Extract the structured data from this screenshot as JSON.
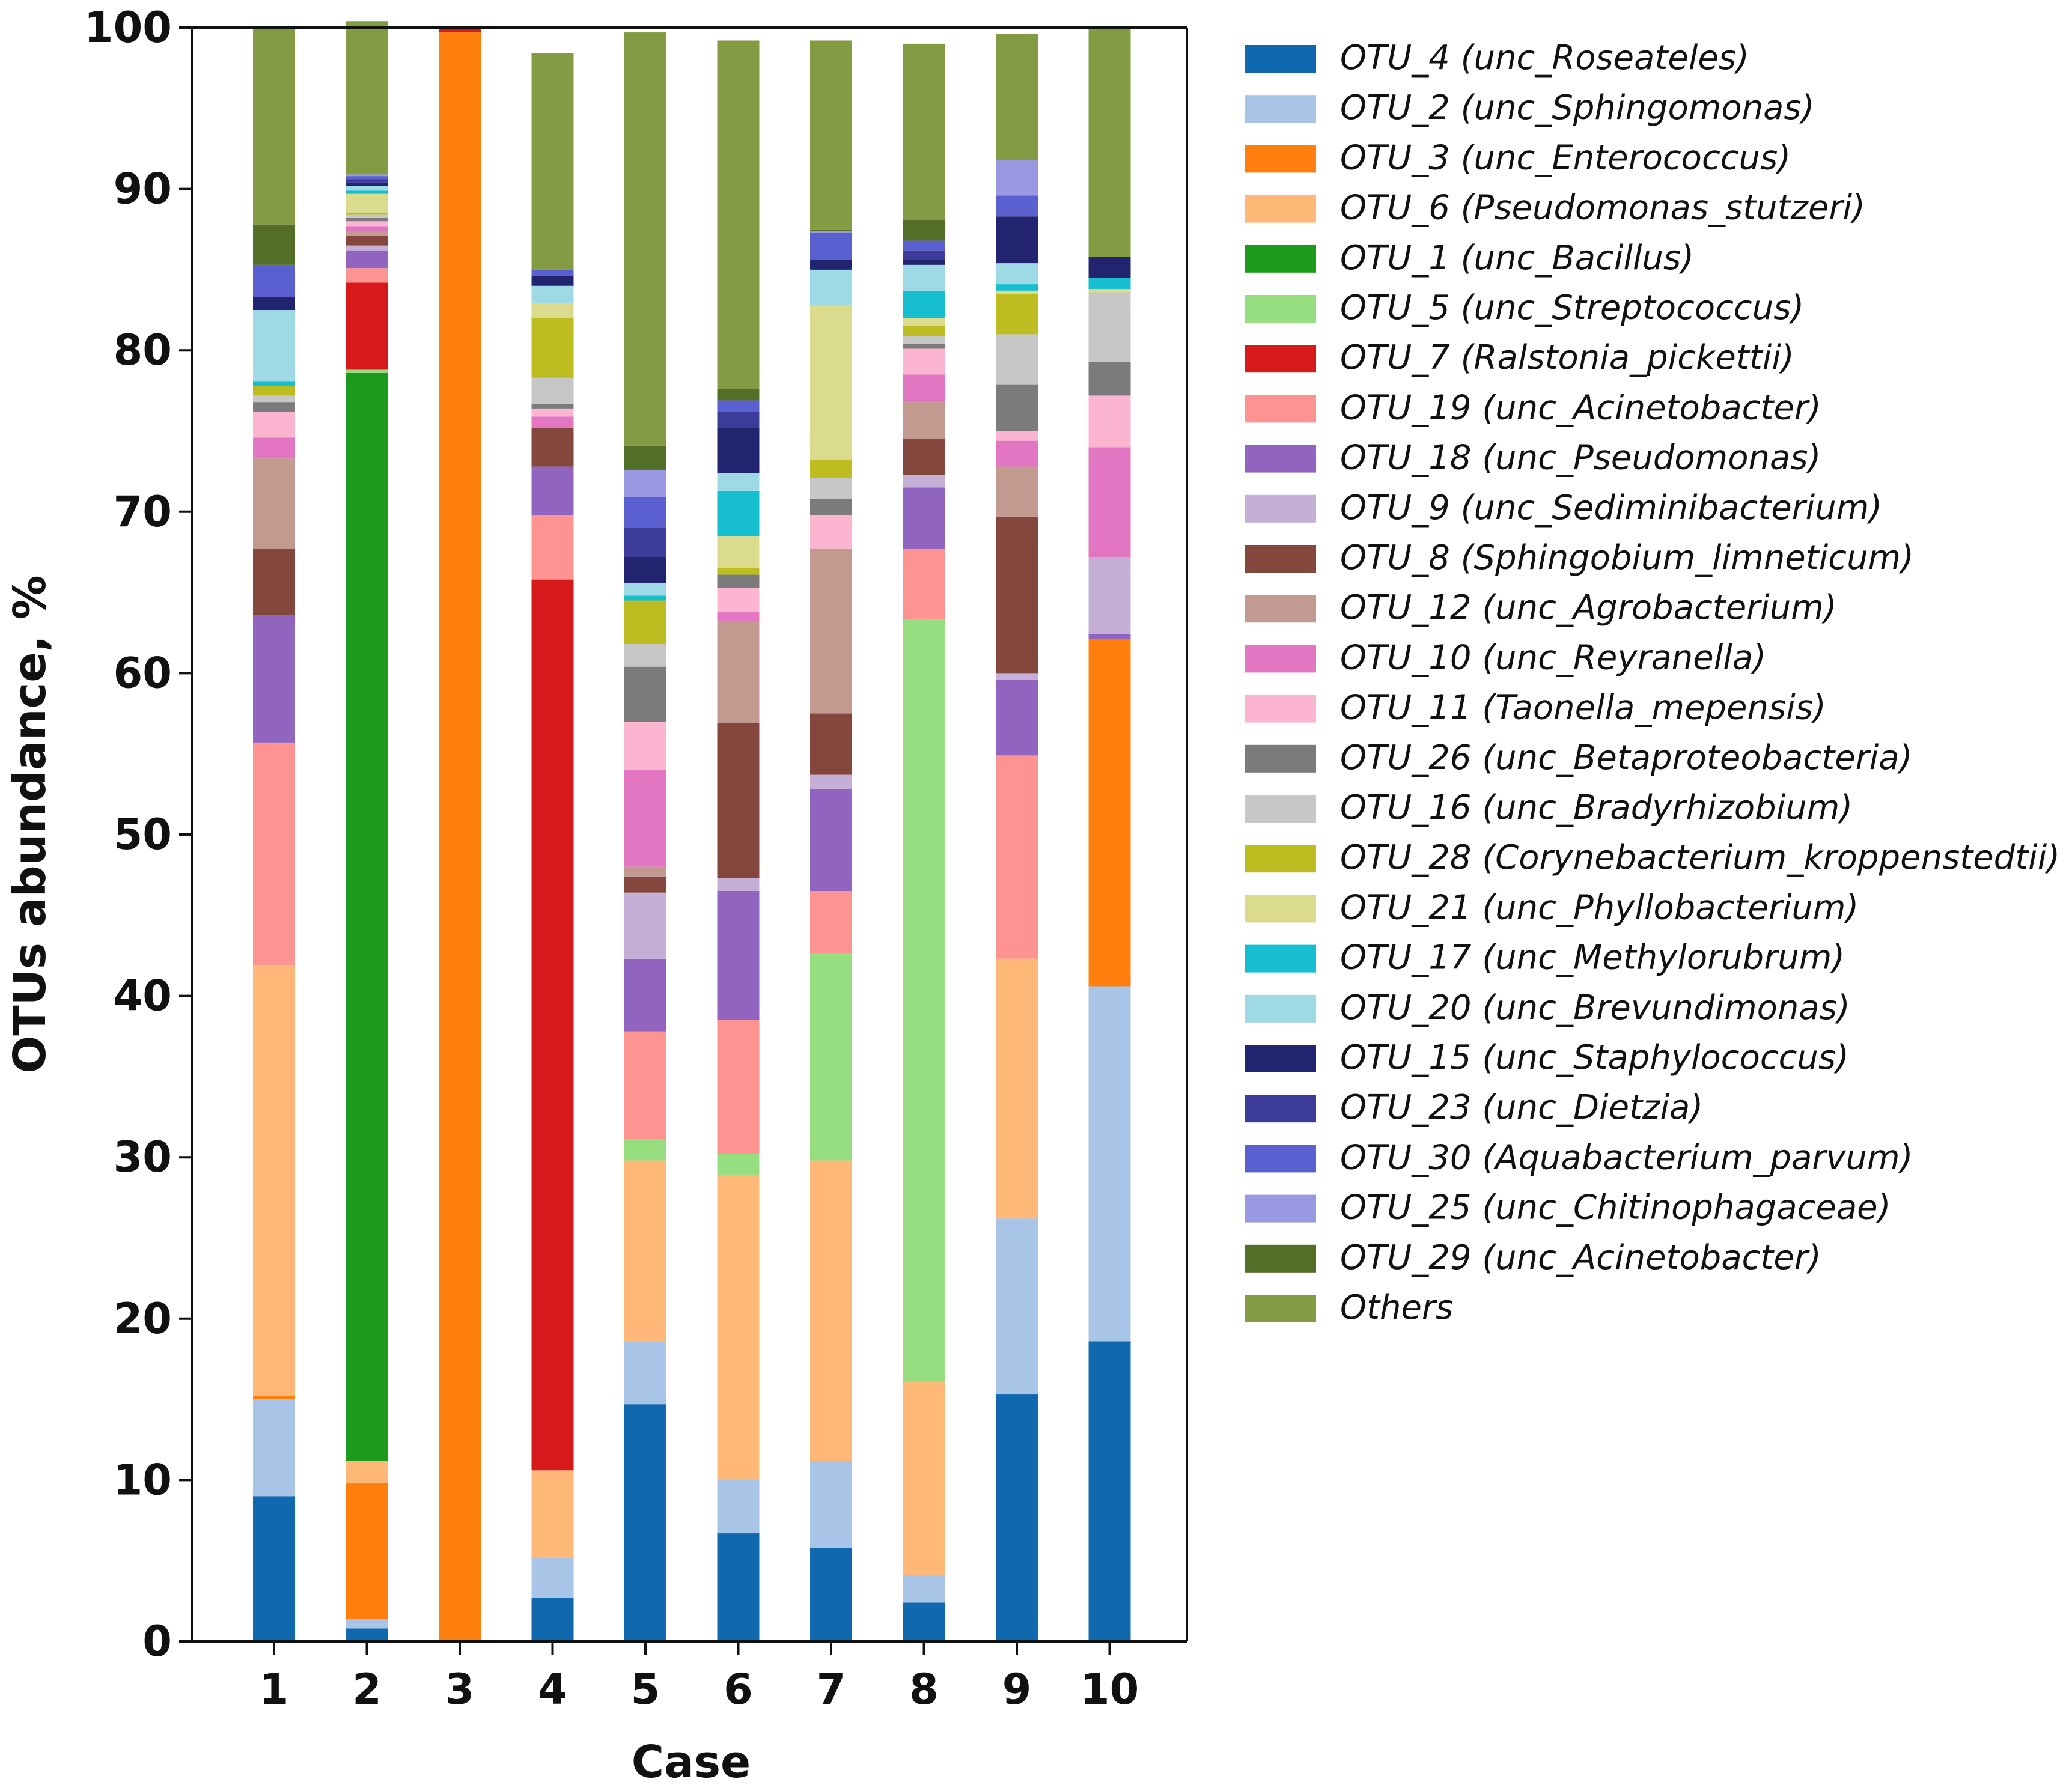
{
  "chart_data": {
    "type": "bar",
    "stacked": true,
    "xlabel": "Case",
    "ylabel": "OTUs abundance, %",
    "ylim": [
      0,
      100
    ],
    "yticks": [
      0,
      10,
      20,
      30,
      40,
      50,
      60,
      70,
      80,
      90,
      100
    ],
    "categories": [
      "1",
      "2",
      "3",
      "4",
      "5",
      "6",
      "7",
      "8",
      "9",
      "10"
    ],
    "legend_position": "right",
    "series": [
      {
        "name": "OTU_4 (unc_Roseateles)",
        "color": "#1068ae",
        "values": [
          9.0,
          0.8,
          0,
          2.7,
          14.7,
          6.7,
          5.8,
          2.4,
          15.3,
          18.6
        ]
      },
      {
        "name": "OTU_2 (unc_Sphingomonas)",
        "color": "#a8c4e6",
        "values": [
          6.0,
          0.6,
          0,
          2.5,
          3.9,
          3.3,
          5.4,
          1.7,
          10.9,
          22.0
        ]
      },
      {
        "name": "OTU_3 (unc_Enterococcus)",
        "color": "#ff7f0e",
        "values": [
          0.2,
          8.4,
          99.7,
          0,
          0,
          0,
          0,
          0,
          0,
          21.5
        ]
      },
      {
        "name": "OTU_6 (Pseudomonas_stutzeri)",
        "color": "#ffb878",
        "values": [
          26.7,
          1.4,
          0,
          5.4,
          11.2,
          18.9,
          18.6,
          12.0,
          16.1,
          0
        ]
      },
      {
        "name": "OTU_1 (unc_Bacillus)",
        "color": "#1c9a1c",
        "values": [
          0,
          67.4,
          0,
          0,
          0,
          0,
          0,
          0,
          0,
          0
        ]
      },
      {
        "name": "OTU_5 (unc_Streptococcus)",
        "color": "#96de80",
        "values": [
          0,
          0.2,
          0,
          0,
          1.3,
          1.3,
          12.8,
          47.2,
          0,
          0
        ]
      },
      {
        "name": "OTU_7 (Ralstonia_pickettii)",
        "color": "#d6191b",
        "values": [
          0,
          5.4,
          0.2,
          55.2,
          0,
          0,
          0,
          0,
          0,
          0
        ]
      },
      {
        "name": "OTU_19 (unc_Acinetobacter)",
        "color": "#fe9491",
        "values": [
          13.8,
          0.9,
          0,
          4.0,
          6.7,
          8.3,
          3.9,
          4.4,
          12.6,
          0
        ]
      },
      {
        "name": "OTU_18 (unc_Pseudomonas)",
        "color": "#9165bf",
        "values": [
          7.9,
          1.1,
          0,
          3.0,
          4.5,
          8.0,
          6.3,
          3.8,
          4.7,
          0.3
        ]
      },
      {
        "name": "OTU_9 (unc_Sediminibacterium)",
        "color": "#c5afd6",
        "values": [
          0,
          0.3,
          0,
          0,
          4.1,
          0.8,
          0.9,
          0.8,
          0.4,
          4.8
        ]
      },
      {
        "name": "OTU_8 (Sphingobium_limneticum)",
        "color": "#84473e",
        "values": [
          4.1,
          0.6,
          0,
          2.4,
          1.0,
          9.6,
          3.8,
          2.2,
          9.7,
          0
        ]
      },
      {
        "name": "OTU_12 (unc_Agrobacterium)",
        "color": "#c39a90",
        "values": [
          5.6,
          0.3,
          0,
          0,
          0.6,
          6.3,
          10.2,
          2.3,
          3.1,
          0
        ]
      },
      {
        "name": "OTU_10 (unc_Reyranella)",
        "color": "#e376c2",
        "values": [
          1.3,
          0.3,
          0,
          0.7,
          6.0,
          0.6,
          0,
          1.7,
          1.6,
          6.8
        ]
      },
      {
        "name": "OTU_11 (Taonella_mepensis)",
        "color": "#fcb5d0",
        "values": [
          1.6,
          0.3,
          0,
          0.5,
          3.0,
          1.5,
          2.1,
          1.6,
          0.6,
          3.2
        ]
      },
      {
        "name": "OTU_26 (unc_Betaproteobacteria)",
        "color": "#7b7b7b",
        "values": [
          0.6,
          0.2,
          0,
          0.3,
          3.4,
          0.8,
          1.0,
          0.3,
          2.9,
          2.1
        ]
      },
      {
        "name": "OTU_16 (unc_Bradyrhizobium)",
        "color": "#c7c7c7",
        "values": [
          0.4,
          0.2,
          0,
          1.6,
          1.4,
          0,
          1.3,
          0.5,
          3.1,
          4.3
        ]
      },
      {
        "name": "OTU_28 (Corynebacterium_kroppenstedtii)",
        "color": "#bdbd22",
        "values": [
          0.6,
          0.1,
          0,
          3.7,
          2.7,
          0.4,
          1.1,
          0.6,
          2.5,
          0
        ]
      },
      {
        "name": "OTU_21 (unc_Phyllobacterium)",
        "color": "#dbdb8d",
        "values": [
          0,
          1.2,
          0,
          0.9,
          0,
          2.0,
          9.6,
          0.5,
          0.2,
          0.2
        ]
      },
      {
        "name": "OTU_17 (unc_Methylorubrum)",
        "color": "#17becf",
        "values": [
          0.3,
          0.2,
          0,
          0,
          0.3,
          2.8,
          0,
          1.7,
          0.4,
          0.7
        ]
      },
      {
        "name": "OTU_20 (unc_Brevundimonas)",
        "color": "#9edae5",
        "values": [
          4.4,
          0.3,
          0,
          1.1,
          0.8,
          1.1,
          2.2,
          1.6,
          1.3,
          0
        ]
      },
      {
        "name": "OTU_15 (unc_Staphylococcus)",
        "color": "#232470",
        "values": [
          0.8,
          0.2,
          0,
          0.6,
          1.6,
          2.8,
          0.6,
          0.3,
          2.9,
          1.3
        ]
      },
      {
        "name": "OTU_23 (unc_Dietzia)",
        "color": "#3e3c9a",
        "values": [
          0,
          0.2,
          0,
          0,
          1.8,
          1.0,
          0,
          0.6,
          0,
          0
        ]
      },
      {
        "name": "OTU_30 (Aquabacterium_parvum)",
        "color": "#5a60d0",
        "values": [
          2.0,
          0.2,
          0,
          0.4,
          1.9,
          0.7,
          1.7,
          0.6,
          1.3,
          0
        ]
      },
      {
        "name": "OTU_25 (unc_Chitinophagaceae)",
        "color": "#9a98e0",
        "values": [
          0,
          0.1,
          0,
          0,
          1.7,
          0,
          0.1,
          0,
          2.2,
          0
        ]
      },
      {
        "name": "OTU_29 (unc_Acinetobacter)",
        "color": "#536f27",
        "values": [
          2.5,
          0,
          0,
          0,
          1.5,
          0.7,
          0.1,
          1.3,
          0,
          0
        ]
      },
      {
        "name": "Others",
        "color": "#839c44",
        "values": [
          12.2,
          9.5,
          0.1,
          13.4,
          25.6,
          21.6,
          11.7,
          10.9,
          7.8,
          14.2
        ]
      }
    ]
  }
}
